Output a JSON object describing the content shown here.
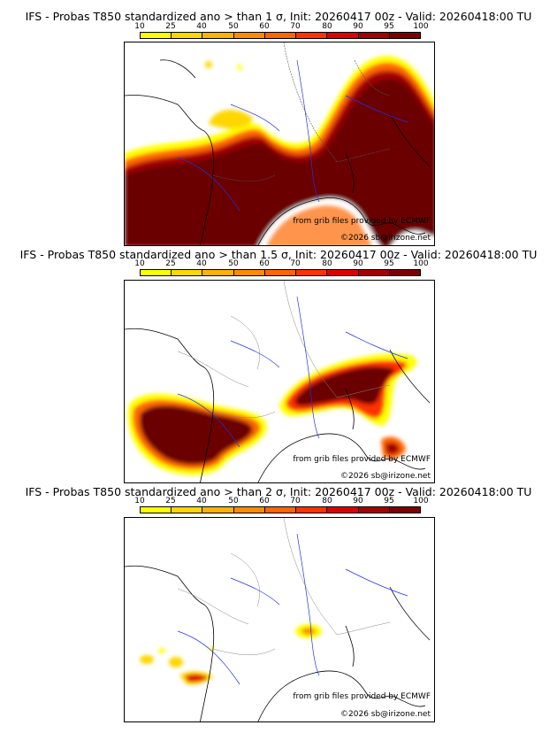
{
  "colorbar": {
    "ticks": [
      "10",
      "25",
      "40",
      "50",
      "60",
      "70",
      "80",
      "90",
      "95",
      "100"
    ],
    "colors": [
      "#ffff00",
      "#ffd700",
      "#ffb300",
      "#ff8c00",
      "#ff6600",
      "#ff3300",
      "#dd0000",
      "#a50000",
      "#7a0000"
    ]
  },
  "credits": {
    "source": "from grib files provided by ECMWF",
    "copyright": "©2026 sb@irizone.net"
  },
  "panels": [
    {
      "title": "IFS - Probas T850  standardized ano > than 1 σ, Init: 20260417 00z - Valid: 20260418:00 TU",
      "sigma": 1,
      "coverage": "extensive"
    },
    {
      "title": "IFS - Probas T850  standardized ano > than 1.5 σ, Init: 20260417 00z - Valid: 20260418:00 TU",
      "sigma": 1.5,
      "coverage": "moderate"
    },
    {
      "title": "IFS - Probas T850  standardized ano > than 2 σ, Init: 20260417 00z - Valid: 20260418:00 TU",
      "sigma": 2,
      "coverage": "sparse"
    }
  ]
}
